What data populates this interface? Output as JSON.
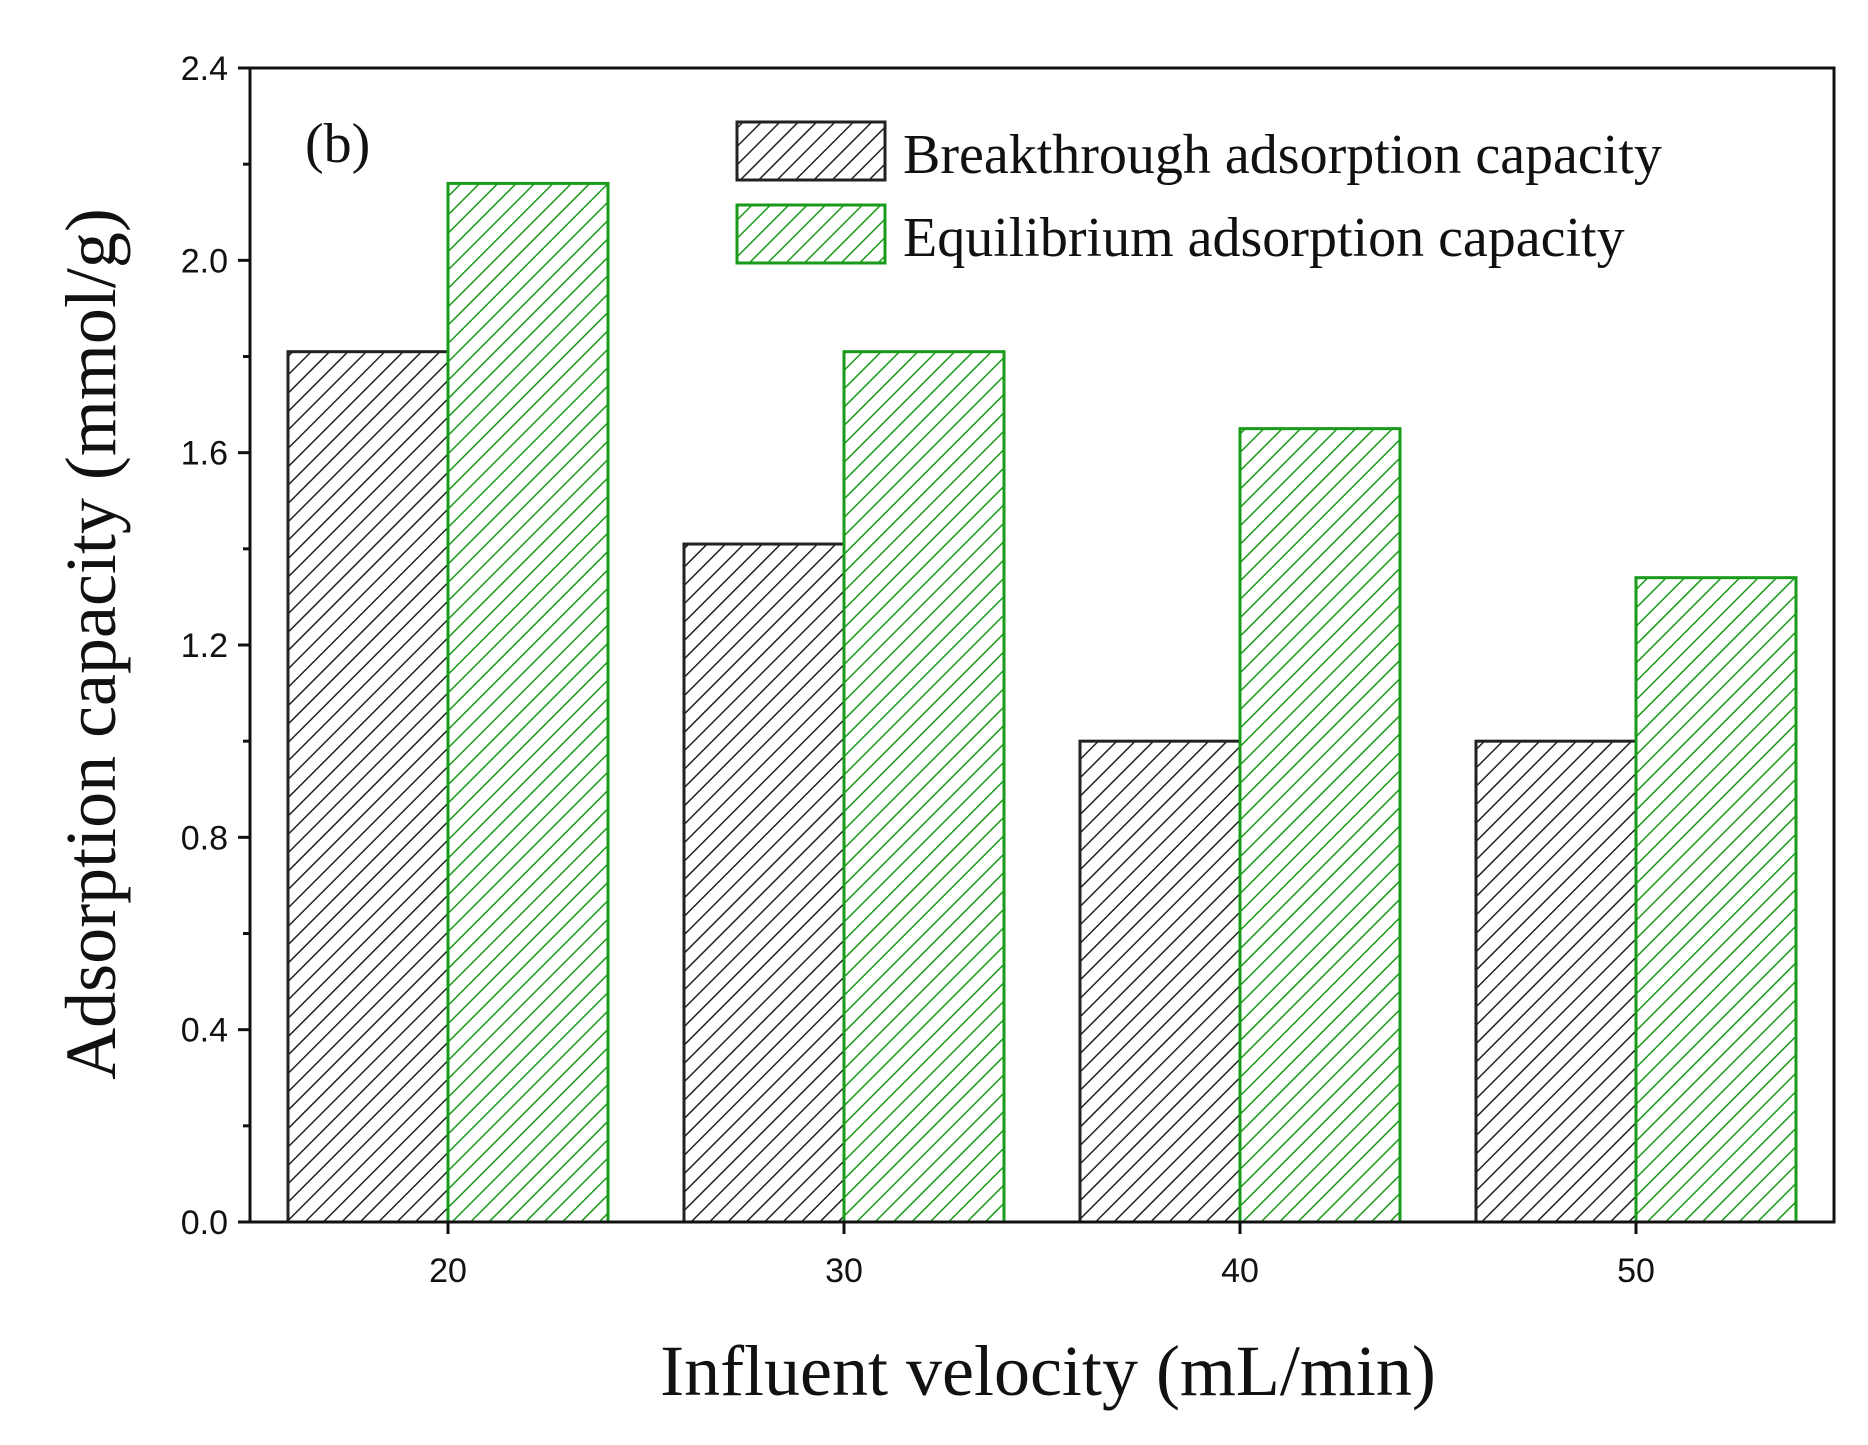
{
  "chart_data": {
    "type": "bar",
    "panel_label": "(b)",
    "title": "",
    "xlabel": "Influent velocity (mL/min)",
    "ylabel": "Adsorption capacity (mmol/g)",
    "categories": [
      "20",
      "30",
      "40",
      "50"
    ],
    "ylim": [
      0,
      2.4
    ],
    "yticks": [
      "0.0",
      "0.4",
      "0.8",
      "1.2",
      "1.6",
      "2.0",
      "2.4"
    ],
    "ytick_values": [
      0.0,
      0.4,
      0.8,
      1.2,
      1.6,
      2.0,
      2.4
    ],
    "grid": false,
    "legend_position": "top-right",
    "series": [
      {
        "name": "Breakthrough adsorption capacity",
        "values": [
          1.81,
          1.41,
          1.0,
          1.0
        ],
        "color": "#222222",
        "pattern": "diagonal-hatch"
      },
      {
        "name": "Equilibrium adsorption capacity",
        "values": [
          2.16,
          1.81,
          1.65,
          1.34
        ],
        "color": "#1a9a1a",
        "pattern": "diagonal-hatch"
      }
    ]
  }
}
